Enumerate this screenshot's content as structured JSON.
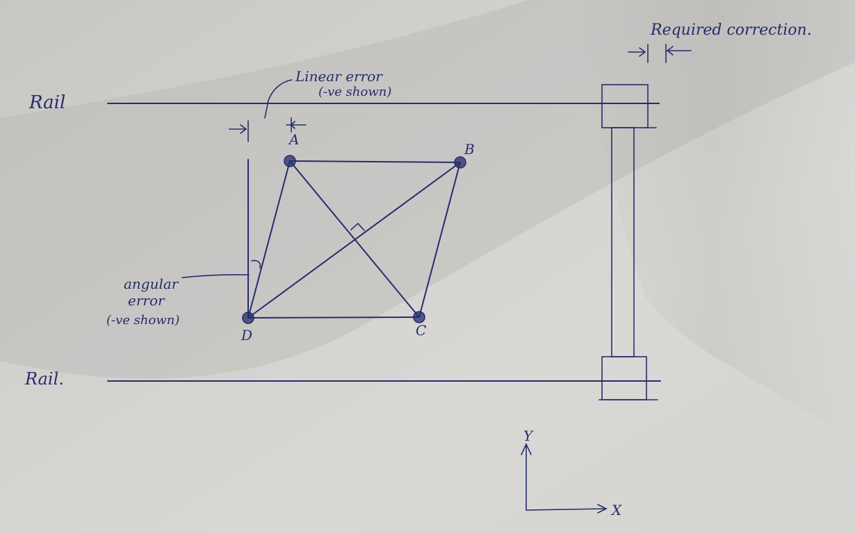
{
  "labels": {
    "rail_top": "Rail",
    "rail_bottom": "Rail.",
    "linear_error_line1": "Linear error",
    "linear_error_line2": "(-ve shown)",
    "angular_error_line1": "angular",
    "angular_error_line2": "error",
    "angular_error_line3": "(-ve shown)",
    "required_correction": "Required correction.",
    "point_a": "A",
    "point_b": "B",
    "point_c": "C",
    "point_d": "D",
    "axis_x": "X",
    "axis_y": "Y"
  },
  "colors": {
    "ink": "#262c6c",
    "paper": "#d8d6d2",
    "shadow": "#a9a8a6"
  }
}
